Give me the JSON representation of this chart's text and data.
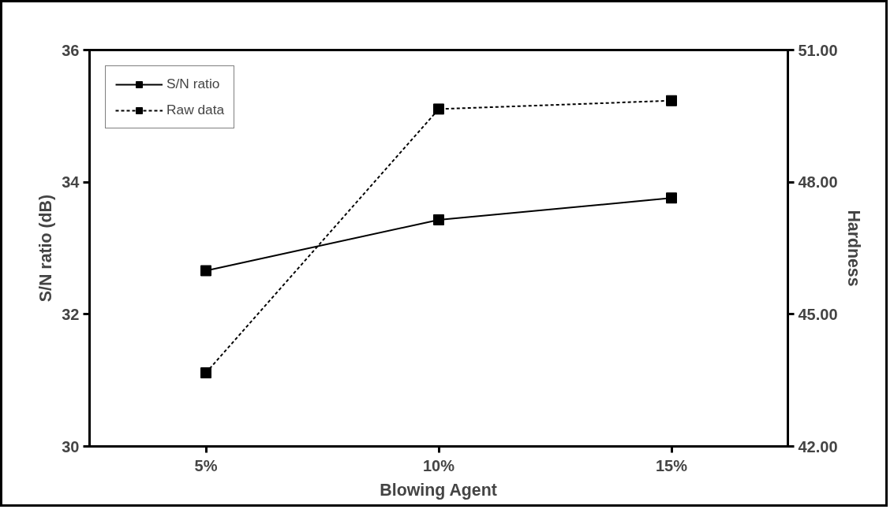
{
  "chart_data": {
    "type": "line",
    "xlabel": "Blowing Agent",
    "ylabel": "S/N ratio (dB)",
    "y2label": "Hardness",
    "categories": [
      "5%",
      "10%",
      "15%"
    ],
    "series": [
      {
        "name": "S/N ratio",
        "color": "#000000",
        "values": [
          32.66,
          33.43,
          33.76
        ],
        "line_style": "solid"
      },
      {
        "name": "Raw data",
        "color": "#000000",
        "values": [
          43.67,
          49.66,
          49.85
        ],
        "line_style": "dashed",
        "axis": "y2"
      }
    ],
    "ylim": [
      30,
      36
    ],
    "yticks": [
      30,
      32,
      34,
      36
    ],
    "y2lim": [
      42,
      51
    ],
    "y2ticks": [
      {
        "value": 42,
        "label": "42.00"
      },
      {
        "value": 45,
        "label": "45.00"
      },
      {
        "value": 48,
        "label": "48.00"
      },
      {
        "value": 51,
        "label": "51.00"
      }
    ],
    "marker": "square",
    "grid": false,
    "legend": "top left"
  }
}
